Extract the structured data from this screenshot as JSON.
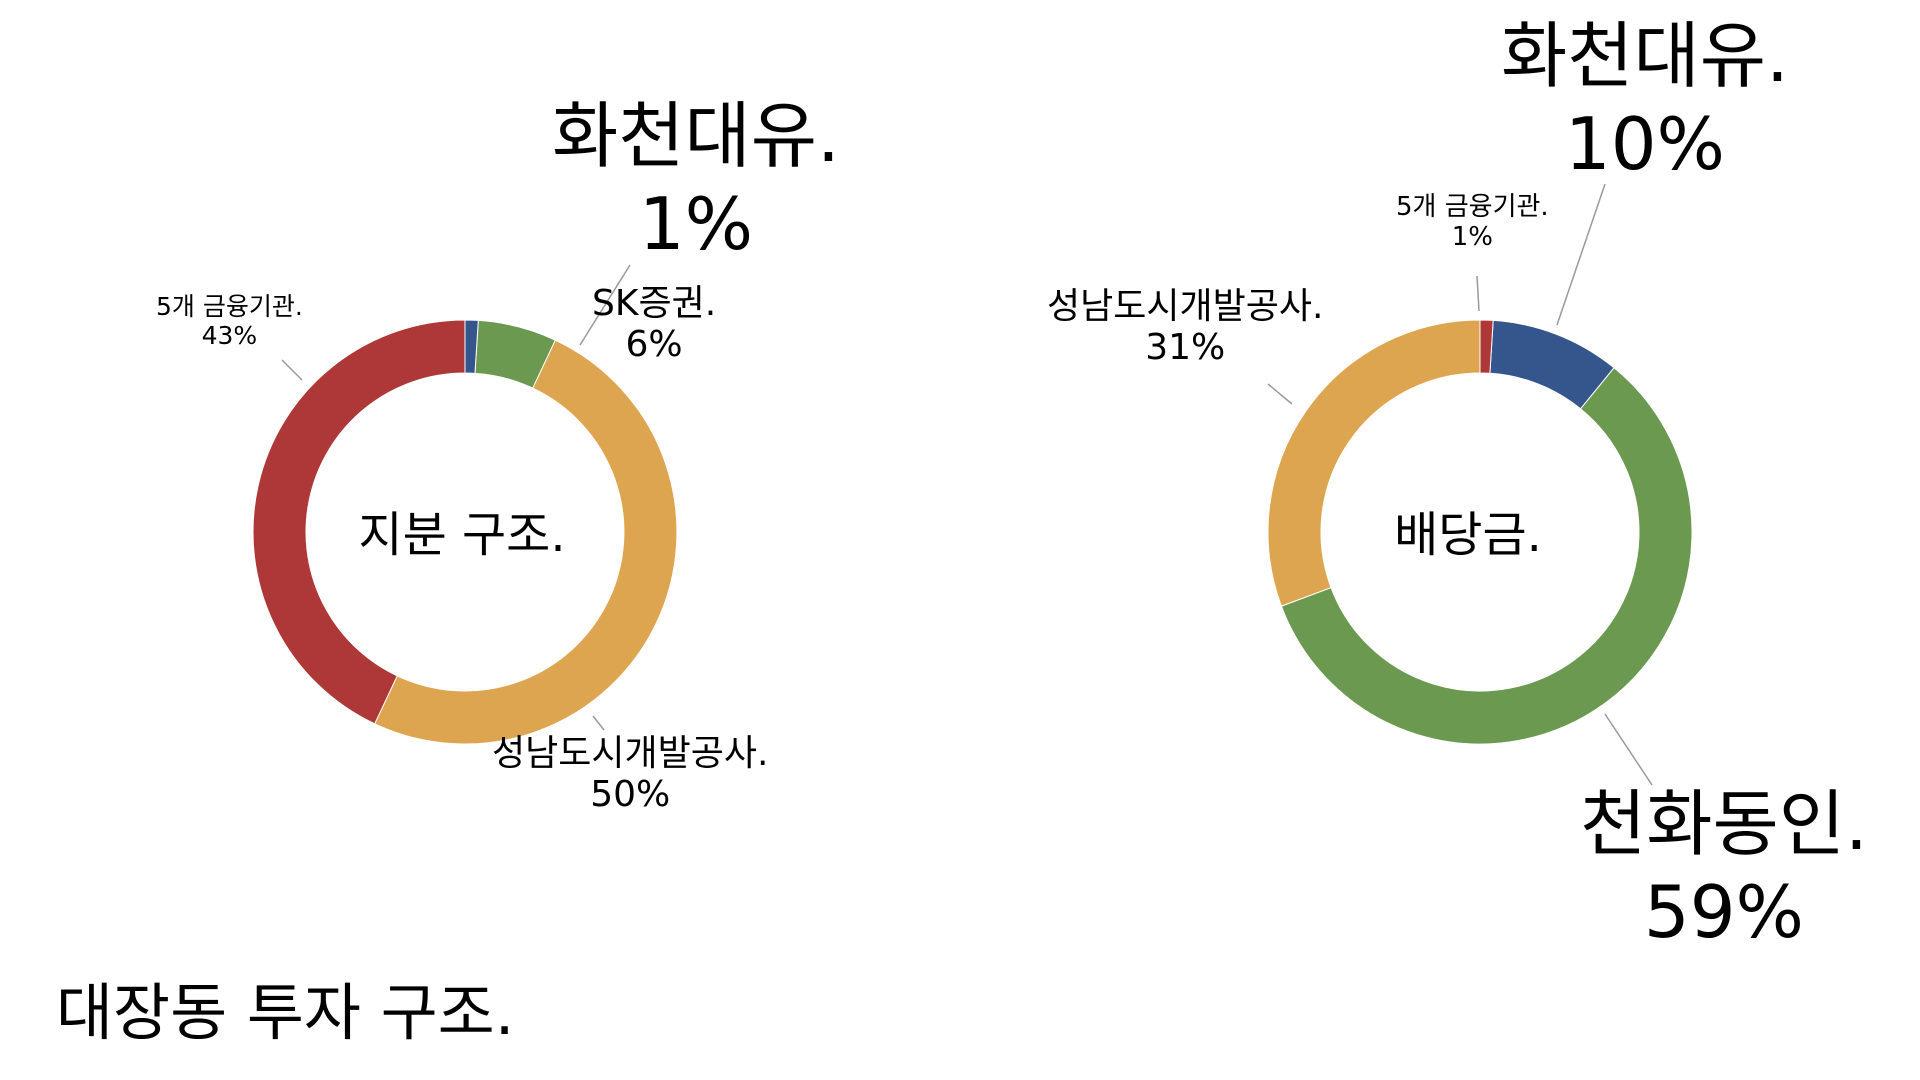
{
  "slide_title": "대장동 투자 구조.",
  "chart_data": [
    {
      "type": "pie",
      "title": "",
      "center_label": "지분 구조.",
      "slices": [
        {
          "name": "화천대유.",
          "value": 1,
          "label": "1%",
          "color": "#35568C"
        },
        {
          "name": "SK증권.",
          "value": 6,
          "label": "6%",
          "color": "#6B994F"
        },
        {
          "name": "성남도시개발공사.",
          "value": 50,
          "label": "50%",
          "color": "#DDA550"
        },
        {
          "name": "5개 금융기관.",
          "value": 43,
          "label": "43%",
          "color": "#AD3837"
        }
      ]
    },
    {
      "type": "pie",
      "title": "",
      "center_label": "배당금.",
      "slices": [
        {
          "name": "5개 금융기관.",
          "value": 1,
          "label": "1%",
          "color": "#AD3837"
        },
        {
          "name": "화천대유.",
          "value": 10,
          "label": "10%",
          "color": "#35568C"
        },
        {
          "name": "천화동인.",
          "value": 59,
          "label": "59%",
          "color": "#6B994F"
        },
        {
          "name": "성남도시개발공사.",
          "value": 31,
          "label": "31%",
          "color": "#DDA550"
        }
      ]
    }
  ]
}
